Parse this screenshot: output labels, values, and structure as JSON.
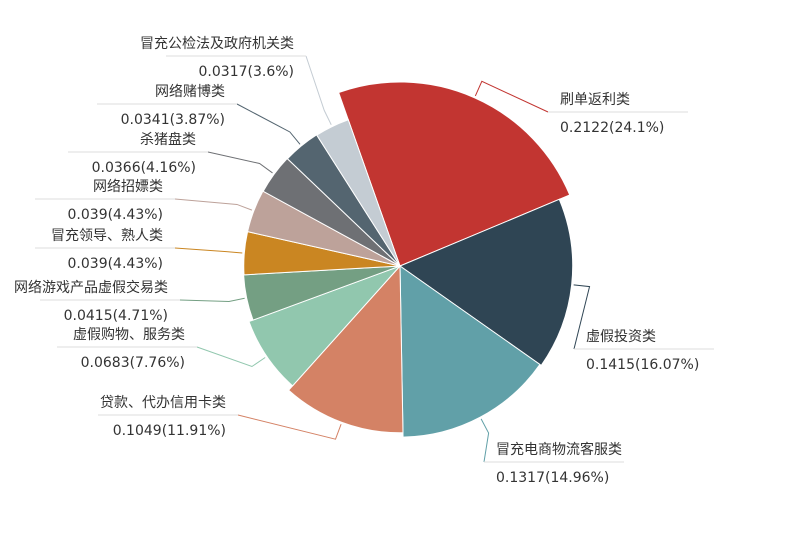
{
  "chart_data": {
    "type": "pie",
    "title": "",
    "series": [
      {
        "name": "",
        "slices": [
          {
            "label": "刷单返利类",
            "value": 0.2122,
            "percent_label": "0.2122(24.1%)",
            "color": "#c23531"
          },
          {
            "label": "虚假投资类",
            "value": 0.1415,
            "percent_label": "0.1415(16.07%)",
            "color": "#2f4554"
          },
          {
            "label": "冒充电商物流客服类",
            "value": 0.1317,
            "percent_label": "0.1317(14.96%)",
            "color": "#61a0a8"
          },
          {
            "label": "贷款、代办信用卡类",
            "value": 0.1049,
            "percent_label": "0.1049(11.91%)",
            "color": "#d48265"
          },
          {
            "label": "虚假购物、服务类",
            "value": 0.0683,
            "percent_label": "0.0683(7.76%)",
            "color": "#91c7ae"
          },
          {
            "label": "网络游戏产品虚假交易类",
            "value": 0.0415,
            "percent_label": "0.0415(4.71%)",
            "color": "#749f83"
          },
          {
            "label": "冒充领导、熟人类",
            "value": 0.039,
            "percent_label": "0.039(4.43%)",
            "color": "#ca8622"
          },
          {
            "label": "网络招嫖类",
            "value": 0.039,
            "percent_label": "0.039(4.43%)",
            "color": "#bda29a"
          },
          {
            "label": "杀猪盘类",
            "value": 0.0366,
            "percent_label": "0.0366(4.16%)",
            "color": "#6e7074"
          },
          {
            "label": "网络赌博类",
            "value": 0.0341,
            "percent_label": "0.0341(3.87%)",
            "color": "#546570"
          },
          {
            "label": "冒充公检法及政府机关类",
            "value": 0.0317,
            "percent_label": "0.0317(3.6%)",
            "color": "#c4ccd3"
          }
        ]
      }
    ],
    "start_angle_deg": 90,
    "direction": "clockwise",
    "legend": "none"
  }
}
